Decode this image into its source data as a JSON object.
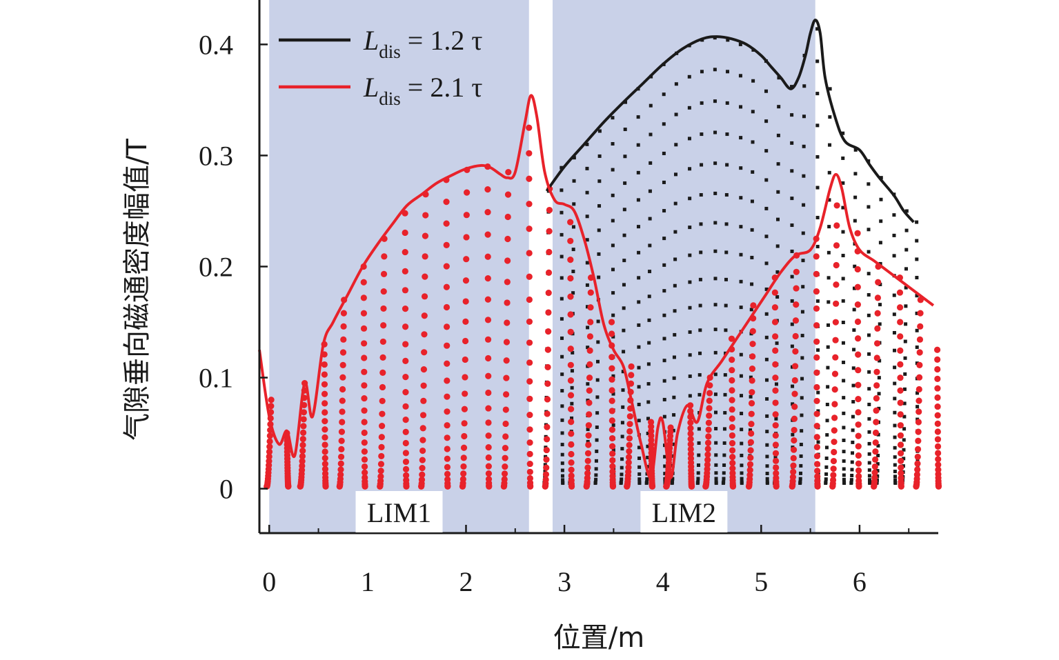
{
  "chart_data": {
    "type": "line",
    "title": "",
    "xlabel": "位置/m",
    "ylabel": "气隙垂向磁通密度幅值/T",
    "xlim": [
      -0.1,
      6.8
    ],
    "ylim": [
      -0.04,
      0.44
    ],
    "x_ticks": [
      0,
      1,
      2,
      3,
      4,
      5,
      6
    ],
    "x_tick_labels": [
      "0",
      "1",
      "2",
      "3",
      "4",
      "5",
      "6"
    ],
    "y_ticks": [
      0,
      0.1,
      0.2,
      0.3,
      0.4
    ],
    "y_tick_labels": [
      "0",
      "0.1",
      "0.2",
      "0.3",
      "0.4"
    ],
    "regions": [
      {
        "label": "LIM1",
        "x_start": 0.0,
        "x_end": 2.64,
        "color": "#c9d1e8"
      },
      {
        "label": "LIM2",
        "x_start": 2.88,
        "x_end": 5.55,
        "color": "#c9d1e8"
      }
    ],
    "legend": {
      "position": "top-left",
      "entries": [
        {
          "prefix": "L",
          "subscript": "dis",
          "suffix": " = 1.2 τ",
          "color": "#1a1a1a"
        },
        {
          "prefix": "L",
          "subscript": "dis",
          "suffix": " = 2.1 τ",
          "color": "#e8222a"
        }
      ]
    },
    "series": [
      {
        "name": "Ldis = 1.2 τ",
        "color": "#1a1a1a",
        "marker": "square",
        "envelope": [
          [
            2.82,
            0.268
          ],
          [
            3.0,
            0.29
          ],
          [
            3.2,
            0.31
          ],
          [
            3.4,
            0.33
          ],
          [
            3.6,
            0.348
          ],
          [
            3.8,
            0.365
          ],
          [
            4.0,
            0.382
          ],
          [
            4.2,
            0.396
          ],
          [
            4.4,
            0.405
          ],
          [
            4.55,
            0.407
          ],
          [
            4.7,
            0.405
          ],
          [
            4.85,
            0.4
          ],
          [
            5.0,
            0.39
          ],
          [
            5.1,
            0.38
          ],
          [
            5.2,
            0.37
          ],
          [
            5.3,
            0.36
          ],
          [
            5.38,
            0.37
          ],
          [
            5.45,
            0.39
          ],
          [
            5.5,
            0.41
          ],
          [
            5.55,
            0.422
          ],
          [
            5.6,
            0.41
          ],
          [
            5.65,
            0.37
          ],
          [
            5.75,
            0.335
          ],
          [
            5.85,
            0.313
          ],
          [
            6.0,
            0.305
          ],
          [
            6.1,
            0.292
          ],
          [
            6.2,
            0.28
          ],
          [
            6.35,
            0.264
          ],
          [
            6.45,
            0.25
          ],
          [
            6.55,
            0.24
          ]
        ],
        "dot_columns": [
          [
            2.84,
            0.268
          ],
          [
            2.97,
            0.289
          ],
          [
            3.1,
            0.298
          ],
          [
            3.23,
            0.31
          ],
          [
            3.36,
            0.322
          ],
          [
            3.49,
            0.334
          ],
          [
            3.62,
            0.348
          ],
          [
            3.75,
            0.36
          ],
          [
            3.88,
            0.371
          ],
          [
            4.01,
            0.382
          ],
          [
            4.14,
            0.392
          ],
          [
            4.27,
            0.399
          ],
          [
            4.4,
            0.404
          ],
          [
            4.53,
            0.406
          ],
          [
            4.66,
            0.404
          ],
          [
            4.79,
            0.4
          ],
          [
            4.92,
            0.395
          ],
          [
            5.05,
            0.385
          ],
          [
            5.18,
            0.37
          ],
          [
            5.31,
            0.362
          ],
          [
            5.44,
            0.39
          ],
          [
            5.57,
            0.414
          ],
          [
            5.7,
            0.36
          ],
          [
            5.83,
            0.32
          ],
          [
            5.96,
            0.305
          ],
          [
            6.09,
            0.295
          ],
          [
            6.22,
            0.28
          ],
          [
            6.35,
            0.265
          ],
          [
            6.48,
            0.25
          ],
          [
            6.58,
            0.24
          ]
        ],
        "dot_min": 0.005
      },
      {
        "name": "Ldis = 2.1 τ",
        "color": "#e8222a",
        "marker": "circle",
        "envelope": [
          [
            -0.1,
            0.125
          ],
          [
            0.0,
            0.065
          ],
          [
            0.1,
            0.04
          ],
          [
            0.18,
            0.052
          ],
          [
            0.26,
            0.03
          ],
          [
            0.36,
            0.095
          ],
          [
            0.44,
            0.065
          ],
          [
            0.55,
            0.13
          ],
          [
            0.65,
            0.15
          ],
          [
            0.8,
            0.175
          ],
          [
            0.95,
            0.2
          ],
          [
            1.1,
            0.22
          ],
          [
            1.25,
            0.238
          ],
          [
            1.4,
            0.255
          ],
          [
            1.55,
            0.265
          ],
          [
            1.7,
            0.275
          ],
          [
            1.85,
            0.282
          ],
          [
            2.0,
            0.288
          ],
          [
            2.15,
            0.291
          ],
          [
            2.25,
            0.289
          ],
          [
            2.35,
            0.283
          ],
          [
            2.42,
            0.28
          ],
          [
            2.5,
            0.285
          ],
          [
            2.6,
            0.33
          ],
          [
            2.66,
            0.354
          ],
          [
            2.72,
            0.335
          ],
          [
            2.8,
            0.285
          ],
          [
            2.9,
            0.26
          ],
          [
            3.0,
            0.256
          ],
          [
            3.1,
            0.25
          ],
          [
            3.2,
            0.225
          ],
          [
            3.3,
            0.19
          ],
          [
            3.4,
            0.148
          ],
          [
            3.5,
            0.125
          ],
          [
            3.6,
            0.11
          ],
          [
            3.68,
            0.08
          ],
          [
            3.78,
            0.04
          ],
          [
            3.88,
            0.01
          ],
          [
            3.95,
            0.055
          ],
          [
            4.0,
            0.06
          ],
          [
            4.08,
            0.01
          ],
          [
            4.15,
            0.05
          ],
          [
            4.25,
            0.075
          ],
          [
            4.35,
            0.06
          ],
          [
            4.45,
            0.095
          ],
          [
            4.6,
            0.115
          ],
          [
            4.75,
            0.135
          ],
          [
            4.9,
            0.155
          ],
          [
            5.05,
            0.175
          ],
          [
            5.2,
            0.195
          ],
          [
            5.35,
            0.21
          ],
          [
            5.5,
            0.215
          ],
          [
            5.6,
            0.235
          ],
          [
            5.7,
            0.27
          ],
          [
            5.76,
            0.283
          ],
          [
            5.82,
            0.27
          ],
          [
            5.9,
            0.235
          ],
          [
            6.0,
            0.215
          ],
          [
            6.15,
            0.205
          ],
          [
            6.3,
            0.195
          ],
          [
            6.45,
            0.185
          ],
          [
            6.6,
            0.175
          ],
          [
            6.75,
            0.165
          ]
        ],
        "dot_columns": [
          [
            0.02,
            0.08
          ],
          [
            0.18,
            0.05
          ],
          [
            0.36,
            0.095
          ],
          [
            0.56,
            0.13
          ],
          [
            0.76,
            0.17
          ],
          [
            0.96,
            0.2
          ],
          [
            1.17,
            0.225
          ],
          [
            1.38,
            0.248
          ],
          [
            1.59,
            0.265
          ],
          [
            1.8,
            0.278
          ],
          [
            2.01,
            0.287
          ],
          [
            2.22,
            0.29
          ],
          [
            2.43,
            0.285
          ],
          [
            2.64,
            0.325
          ],
          [
            2.85,
            0.27
          ],
          [
            3.06,
            0.24
          ],
          [
            3.27,
            0.19
          ],
          [
            3.48,
            0.15
          ],
          [
            3.68,
            0.11
          ],
          [
            3.88,
            0.06
          ],
          [
            4.08,
            0.055
          ],
          [
            4.28,
            0.075
          ],
          [
            4.48,
            0.1
          ],
          [
            4.7,
            0.135
          ],
          [
            4.92,
            0.165
          ],
          [
            5.14,
            0.19
          ],
          [
            5.36,
            0.21
          ],
          [
            5.56,
            0.225
          ],
          [
            5.77,
            0.255
          ],
          [
            5.98,
            0.23
          ],
          [
            6.19,
            0.2
          ],
          [
            6.41,
            0.19
          ],
          [
            6.62,
            0.17
          ],
          [
            6.79,
            0.125
          ]
        ],
        "dot_min": 0.002
      }
    ]
  }
}
